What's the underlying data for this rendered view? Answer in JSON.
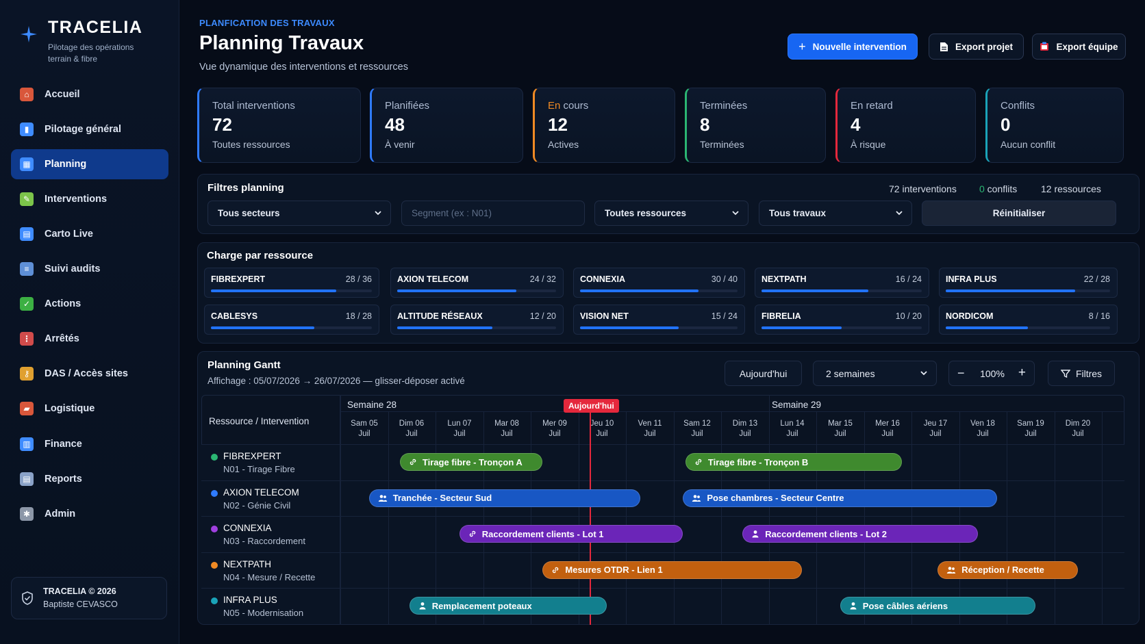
{
  "brand": {
    "name": "TRACELIA",
    "subtitle": "Pilotage des opérations terrain & fibre"
  },
  "nav": [
    {
      "label": "Accueil",
      "icon": "house-icon",
      "color": "#d9573b"
    },
    {
      "label": "Pilotage général",
      "icon": "bar-chart-icon",
      "color": "#3f8cff"
    },
    {
      "label": "Planning",
      "icon": "calendar-icon",
      "color": "#3f8cff"
    },
    {
      "label": "Interventions",
      "icon": "tool-icon",
      "color": "#7cc44a"
    },
    {
      "label": "Carto Live",
      "icon": "map-book-icon",
      "color": "#3f8cff"
    },
    {
      "label": "Suivi audits",
      "icon": "clipboard-icon",
      "color": "#5e8fd6"
    },
    {
      "label": "Actions",
      "icon": "check-icon",
      "color": "#3cb043"
    },
    {
      "label": "Arrêtés",
      "icon": "traffic-light-icon",
      "color": "#d14b4b"
    },
    {
      "label": "DAS / Accès sites",
      "icon": "key-icon",
      "color": "#e0a030"
    },
    {
      "label": "Logistique",
      "icon": "truck-icon",
      "color": "#d9573b"
    },
    {
      "label": "Finance",
      "icon": "finance-chart-icon",
      "color": "#3f8cff"
    },
    {
      "label": "Reports",
      "icon": "report-icon",
      "color": "#8aa2c8"
    },
    {
      "label": "Admin",
      "icon": "gear-icon",
      "color": "#8c97a8"
    }
  ],
  "footer": {
    "copyright": "TRACELIA © 2026",
    "author": "Baptiste CEVASCO"
  },
  "header": {
    "overline": "PLANFICATION DES TRAVAUX",
    "title": "Planning Travaux",
    "subtitle": "Vue dynamique des interventions et ressources",
    "new_label": "Nouvelle intervention",
    "export_project_label": "Export projet",
    "export_team_label": "Export équipe"
  },
  "kpis": [
    {
      "label": "Total interventions",
      "value": "72",
      "note": "Toutes ressources",
      "color": "#2f7bff"
    },
    {
      "label": "Planifiées",
      "value": "48",
      "note": "À venir",
      "color": "#2f7bff"
    },
    {
      "label": "En cours",
      "label_accent": "En",
      "label_rest": " cours",
      "value": "12",
      "note": "Actives",
      "color": "#f08a24"
    },
    {
      "label": "Terminées",
      "value": "8",
      "note": "Terminées",
      "color": "#2bb673"
    },
    {
      "label": "En retard",
      "value": "4",
      "note": "À risque",
      "color": "#e5283c"
    },
    {
      "label": "Conflits",
      "value": "0",
      "note": "Aucun conflit",
      "color": "#1aa3b8"
    }
  ],
  "filters": {
    "title": "Filtres planning",
    "interventions": "72 interventions",
    "conflicts_num": "0",
    "conflicts_label": " conflits",
    "resources": "12 ressources",
    "sector": "Tous secteurs",
    "segment_placeholder": "Segment (ex : N01)",
    "resource": "Toutes ressources",
    "work": "Tous travaux",
    "reset_label": "Réinitialiser"
  },
  "charge": {
    "title": "Charge par ressource",
    "items": [
      {
        "name": "FIBREXPERT",
        "count": "28 / 36",
        "fill": 0.778
      },
      {
        "name": "AXION TELECOM",
        "count": "24 / 32",
        "fill": 0.75
      },
      {
        "name": "CONNEXIA",
        "count": "30 / 40",
        "fill": 0.75
      },
      {
        "name": "NEXTPATH",
        "count": "16 / 24",
        "fill": 0.667
      },
      {
        "name": "INFRA PLUS",
        "count": "22 / 28",
        "fill": 0.786
      },
      {
        "name": "CABLESYS",
        "count": "18 / 28",
        "fill": 0.643
      },
      {
        "name": "ALTITUDE RÉSEAUX",
        "count": "12 / 20",
        "fill": 0.6
      },
      {
        "name": "VISION NET",
        "count": "15 / 24",
        "fill": 0.625
      },
      {
        "name": "FIBRELIA",
        "count": "10 / 20",
        "fill": 0.5
      },
      {
        "name": "NORDICOM",
        "count": "8 / 16",
        "fill": 0.5
      }
    ]
  },
  "gantt": {
    "title": "Planning Gantt",
    "subtitle": "Affichage : 05/07/2026 → 26/07/2026 — glisser-déposer activé",
    "today_label": "Aujourd'hui",
    "range": "2 semaines",
    "zoom": "100%",
    "filters_label": "Filtres",
    "col_header": "Ressource / Intervention",
    "week1": "Semaine 28",
    "week2": "Semaine 29",
    "today_tag": "Aujourd'hui",
    "days": [
      {
        "d": "Sam 05",
        "m": "Juil"
      },
      {
        "d": "Dim 06",
        "m": "Juil"
      },
      {
        "d": "Lun 07",
        "m": "Juil"
      },
      {
        "d": "Mar 08",
        "m": "Juil"
      },
      {
        "d": "Mer 09",
        "m": "Juil"
      },
      {
        "d": "Jeu 10",
        "m": "Juil"
      },
      {
        "d": "Ven 11",
        "m": "Juil"
      },
      {
        "d": "Sam 12",
        "m": "Juil"
      },
      {
        "d": "Dim 13",
        "m": "Juil"
      },
      {
        "d": "Lun 14",
        "m": "Juil"
      },
      {
        "d": "Mar 15",
        "m": "Juil"
      },
      {
        "d": "Mer 16",
        "m": "Juil"
      },
      {
        "d": "Jeu 17",
        "m": "Juil"
      },
      {
        "d": "Ven 18",
        "m": "Juil"
      },
      {
        "d": "Sam 19",
        "m": "Juil"
      },
      {
        "d": "Dim 20",
        "m": "Juil"
      }
    ],
    "rows": [
      {
        "name": "FIBREXPERT",
        "sub": "N01 - Tirage Fibre",
        "dot": "#2bb673"
      },
      {
        "name": "AXION TELECOM",
        "sub": "N02 - Génie Civil",
        "dot": "#2f7bff"
      },
      {
        "name": "CONNEXIA",
        "sub": "N03 - Raccordement",
        "dot": "#a040e0"
      },
      {
        "name": "NEXTPATH",
        "sub": "N04 - Mesure / Recette",
        "dot": "#f08a24"
      },
      {
        "name": "INFRA PLUS",
        "sub": "N05 - Modernisation",
        "dot": "#1aa3b8"
      }
    ],
    "tasks": [
      {
        "label": "Tirage fibre - Tronçon A",
        "row": 0,
        "start": 1.25,
        "end": 4.25,
        "color": "#3f8a2e",
        "icon": "link-icon"
      },
      {
        "label": "Tirage fibre - Tronçon B",
        "row": 0,
        "start": 7.25,
        "end": 11.8,
        "color": "#3f8a2e",
        "icon": "link-icon"
      },
      {
        "label": "Tranchée - Secteur Sud",
        "row": 1,
        "start": 0.6,
        "end": 6.3,
        "color": "#1857c4",
        "icon": "team-icon"
      },
      {
        "label": "Pose chambres - Secteur Centre",
        "row": 1,
        "start": 7.2,
        "end": 13.8,
        "color": "#1857c4",
        "icon": "team-icon"
      },
      {
        "label": "Raccordement clients - Lot 1",
        "row": 2,
        "start": 2.5,
        "end": 7.2,
        "color": "#6b25b8",
        "icon": "link-icon"
      },
      {
        "label": "Raccordement clients - Lot 2",
        "row": 2,
        "start": 8.45,
        "end": 13.4,
        "color": "#6b25b8",
        "icon": "person-icon"
      },
      {
        "label": "Mesures OTDR - Lien 1",
        "row": 3,
        "start": 4.25,
        "end": 9.7,
        "color": "#c2600f",
        "icon": "link-icon"
      },
      {
        "label": "Réception / Recette",
        "row": 3,
        "start": 12.55,
        "end": 15.5,
        "color": "#c2600f",
        "icon": "team-icon"
      },
      {
        "label": "Remplacement poteaux",
        "row": 4,
        "start": 1.45,
        "end": 5.6,
        "color": "#127f8e",
        "icon": "person-icon"
      },
      {
        "label": "Pose câbles aériens",
        "row": 4,
        "start": 10.5,
        "end": 14.6,
        "color": "#127f8e",
        "icon": "person-icon"
      }
    ]
  }
}
